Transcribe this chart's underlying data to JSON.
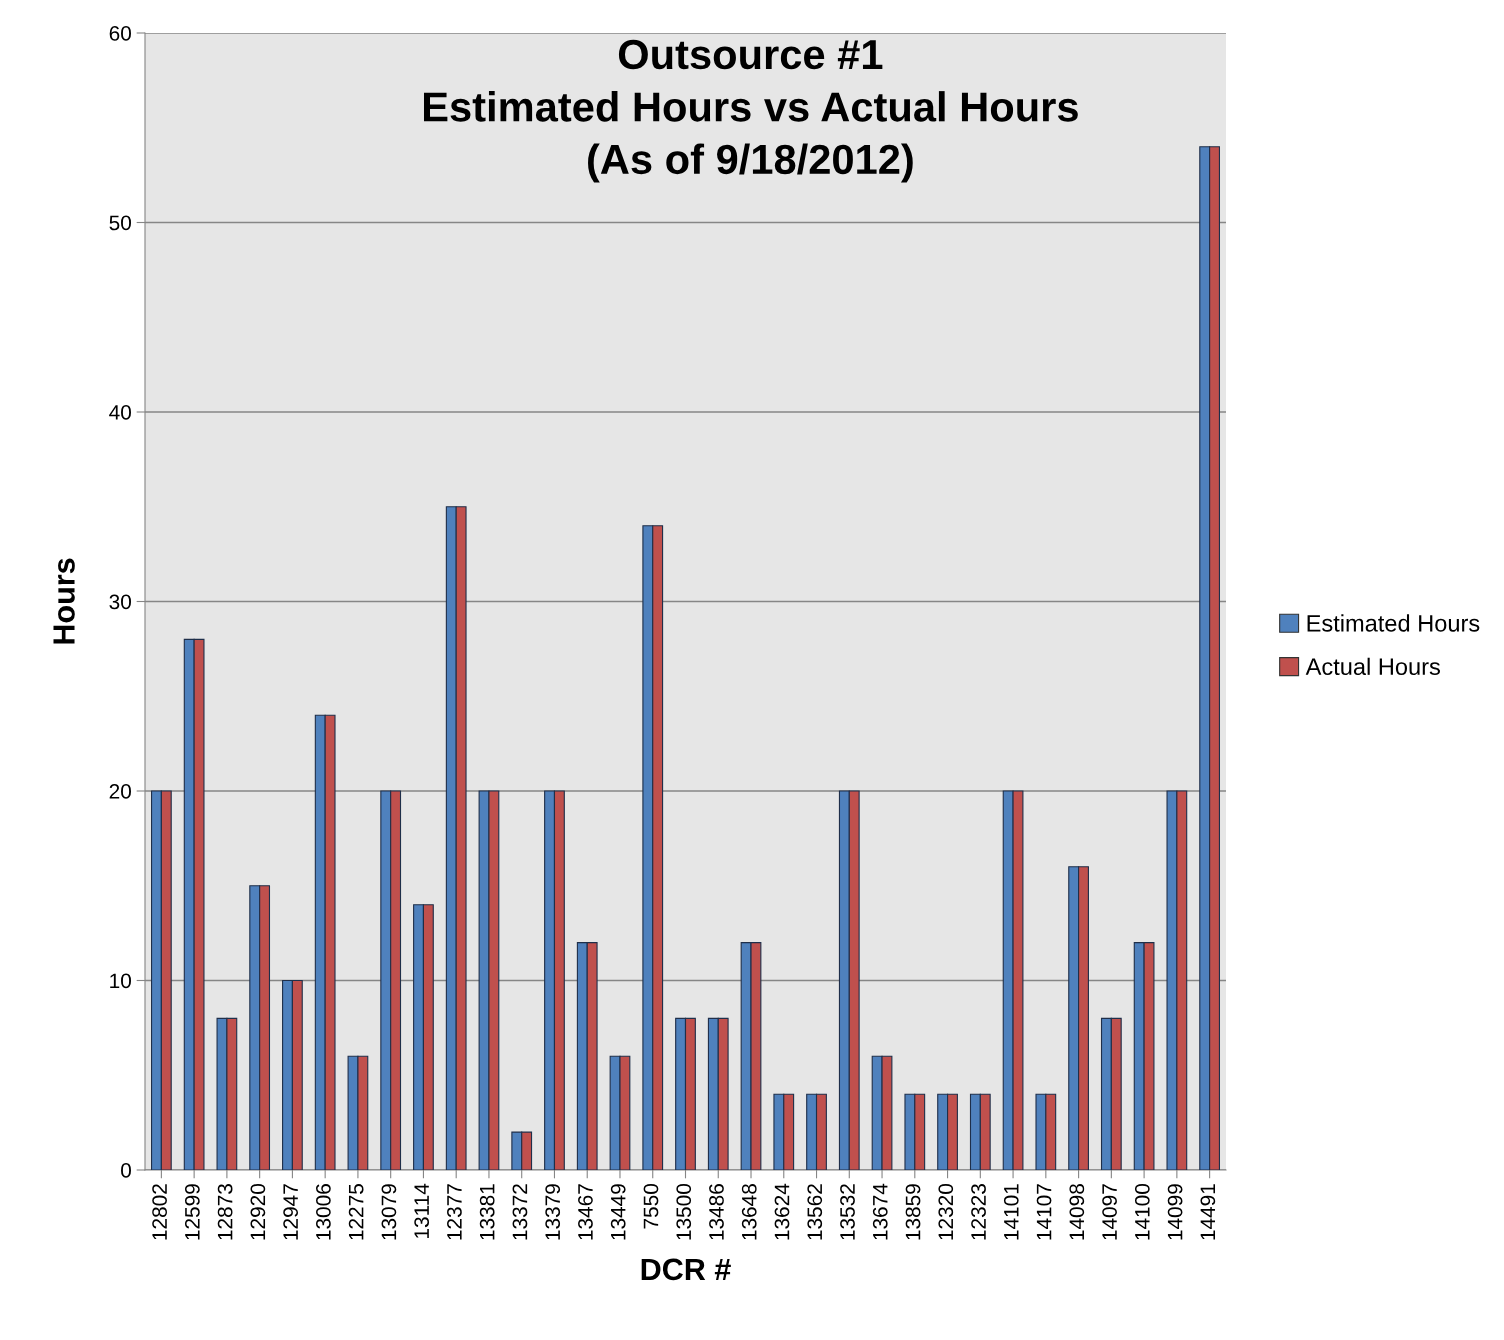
{
  "chart_data": {
    "type": "bar",
    "title": "Outsource #1\nEstimated Hours vs Actual Hours\n(As of 9/18/2012)",
    "xlabel": "DCR #",
    "ylabel": "Hours",
    "categories": [
      "12802",
      "12599",
      "12873",
      "12920",
      "12947",
      "13006",
      "12275",
      "13079",
      "13114",
      "12377",
      "13381",
      "13372",
      "13379",
      "13467",
      "13449",
      "7550",
      "13500",
      "13486",
      "13648",
      "13624",
      "13562",
      "13532",
      "13674",
      "13859",
      "12320",
      "12323",
      "14101",
      "14107",
      "14098",
      "14097",
      "14100",
      "14099",
      "14491"
    ],
    "series": [
      {
        "name": "Estimated Hours",
        "color": "#4f81bd",
        "values": [
          20,
          28,
          8,
          15,
          10,
          24,
          6,
          20,
          14,
          35,
          20,
          2,
          20,
          12,
          6,
          34,
          8,
          8,
          12,
          4,
          4,
          20,
          6,
          4,
          4,
          4,
          20,
          4,
          16,
          8,
          12,
          20,
          54
        ]
      },
      {
        "name": "Actual Hours",
        "color": "#c0504d",
        "values": [
          20,
          28,
          8,
          15,
          10,
          24,
          6,
          20,
          14,
          35,
          20,
          2,
          20,
          12,
          6,
          34,
          8,
          8,
          12,
          4,
          4,
          20,
          6,
          4,
          4,
          4,
          20,
          4,
          16,
          8,
          12,
          20,
          54
        ]
      }
    ],
    "ylim": [
      0,
      60
    ],
    "yticks": [
      0,
      10,
      20,
      30,
      40,
      50,
      60
    ],
    "grid": "y",
    "legend": "right"
  }
}
